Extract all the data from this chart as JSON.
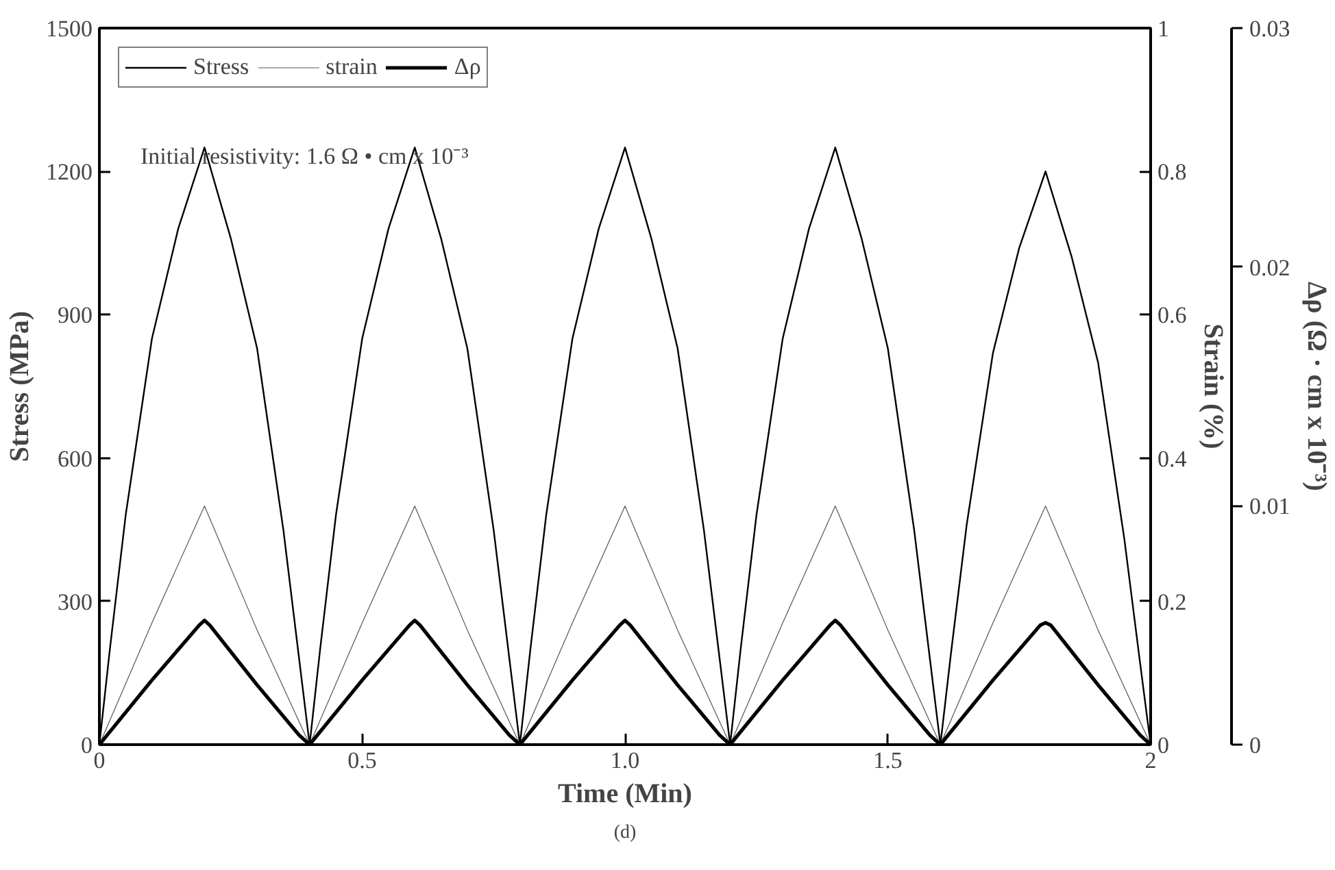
{
  "chart_data": {
    "type": "line",
    "xlabel": "Time (Min)",
    "ylabel": "Stress (MPa)",
    "y2label": "Strain (%)",
    "y3label": "Δρ (Ω · cm x 10⁻³)",
    "xlim": [
      0,
      2
    ],
    "xticks": [
      0,
      0.5,
      {
        "value": 1,
        "label": "1.0"
      },
      1.5,
      2
    ],
    "ylim": [
      0,
      1500
    ],
    "yticks": [
      0,
      300,
      600,
      900,
      1200,
      1500
    ],
    "y2lim": [
      0,
      1
    ],
    "y2ticks": [
      0,
      0.2,
      0.4,
      0.6,
      0.8,
      1
    ],
    "y3lim": [
      0,
      0.03
    ],
    "y3ticks": [
      0,
      0.01,
      0.02,
      0.03
    ],
    "legend": "top left",
    "grid": false,
    "line_style": "solid",
    "annotations": [
      "Initial resistivity: 1.6 Ω • cm x 10⁻³",
      "(d)"
    ],
    "series": [
      {
        "name": "Stress",
        "color": "#000000",
        "axis": "y",
        "x": [
          0,
          0.02,
          0.05,
          0.1,
          0.15,
          0.2,
          0.25,
          0.3,
          0.35,
          0.38,
          0.4,
          0.42,
          0.45,
          0.5,
          0.55,
          0.6,
          0.65,
          0.7,
          0.75,
          0.78,
          0.8,
          0.82,
          0.85,
          0.9,
          0.95,
          1,
          1.05,
          1.1,
          1.15,
          1.18,
          1.2,
          1.22,
          1.25,
          1.3,
          1.35,
          1.4,
          1.45,
          1.5,
          1.55,
          1.58,
          1.6,
          1.62,
          1.65,
          1.7,
          1.75,
          1.8,
          1.85,
          1.9,
          1.95,
          1.98,
          2
        ],
        "values": [
          0,
          200,
          480,
          850,
          1080,
          1250,
          1060,
          830,
          450,
          180,
          0,
          200,
          480,
          850,
          1080,
          1250,
          1060,
          830,
          450,
          180,
          0,
          200,
          480,
          850,
          1080,
          1250,
          1060,
          830,
          450,
          180,
          0,
          200,
          480,
          850,
          1080,
          1250,
          1060,
          830,
          450,
          180,
          0,
          190,
          460,
          820,
          1040,
          1200,
          1020,
          800,
          430,
          170,
          0
        ]
      },
      {
        "name": "strain",
        "color": "#555555",
        "axis": "y2",
        "x": [
          0,
          0.1,
          0.2,
          0.3,
          0.4,
          0.5,
          0.6,
          0.7,
          0.8,
          0.9,
          1,
          1.1,
          1.2,
          1.3,
          1.4,
          1.5,
          1.6,
          1.7,
          1.8,
          1.9,
          2
        ],
        "values": [
          0,
          0.17,
          0.333,
          0.16,
          0,
          0.17,
          0.333,
          0.16,
          0,
          0.17,
          0.333,
          0.16,
          0,
          0.17,
          0.333,
          0.16,
          0,
          0.17,
          0.333,
          0.16,
          0
        ]
      },
      {
        "name": "Δρ",
        "color": "#000000",
        "axis": "y3",
        "x": [
          0,
          0.1,
          0.19,
          0.2,
          0.21,
          0.3,
          0.38,
          0.4,
          0.5,
          0.59,
          0.6,
          0.61,
          0.7,
          0.78,
          0.8,
          0.9,
          0.99,
          1,
          1.01,
          1.1,
          1.18,
          1.2,
          1.3,
          1.39,
          1.4,
          1.41,
          1.5,
          1.58,
          1.6,
          1.7,
          1.79,
          1.8,
          1.81,
          1.9,
          1.98,
          2
        ],
        "values": [
          0,
          0.0027,
          0.005,
          0.0052,
          0.005,
          0.0025,
          0.0004,
          0,
          0.0027,
          0.005,
          0.0052,
          0.005,
          0.0025,
          0.0004,
          0,
          0.0027,
          0.005,
          0.0052,
          0.005,
          0.0025,
          0.0004,
          0,
          0.0027,
          0.005,
          0.0052,
          0.005,
          0.0025,
          0.0004,
          0,
          0.0027,
          0.005,
          0.0051,
          0.005,
          0.0025,
          0.0004,
          0
        ]
      }
    ]
  }
}
